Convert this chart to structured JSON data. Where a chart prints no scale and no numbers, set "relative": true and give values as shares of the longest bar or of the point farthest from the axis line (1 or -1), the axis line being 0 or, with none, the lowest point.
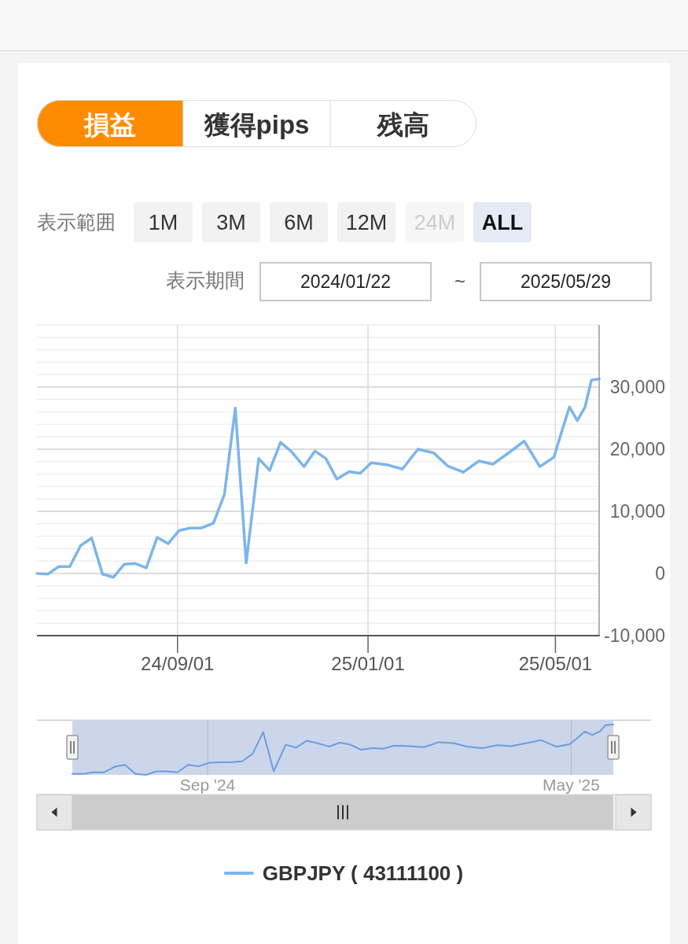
{
  "chart_data": [
    {
      "type": "line",
      "x": [
        "2024-06-03",
        "2024-06-10",
        "2024-06-17",
        "2024-06-24",
        "2024-07-01",
        "2024-07-08",
        "2024-07-15",
        "2024-07-22",
        "2024-07-29",
        "2024-08-05",
        "2024-08-12",
        "2024-08-19",
        "2024-08-26",
        "2024-09-02",
        "2024-09-09",
        "2024-09-16",
        "2024-09-24",
        "2024-10-01",
        "2024-10-08",
        "2024-10-15",
        "2024-10-23",
        "2024-10-30",
        "2024-11-06",
        "2024-11-13",
        "2024-11-21",
        "2024-11-28",
        "2024-12-05",
        "2024-12-12",
        "2024-12-20",
        "2024-12-27",
        "2025-01-03",
        "2025-01-13",
        "2025-01-23",
        "2025-02-02",
        "2025-02-12",
        "2025-02-21",
        "2025-03-03",
        "2025-03-13",
        "2025-03-22",
        "2025-04-01",
        "2025-04-11",
        "2025-04-21",
        "2025-04-30",
        "2025-05-05",
        "2025-05-10",
        "2025-05-15",
        "2025-05-20",
        "2025-05-24",
        "2025-05-29"
      ],
      "series": [
        {
          "name": "GBPJPY ( 43111100 )",
          "color": "#7cb5ec",
          "values": [
            0,
            -100,
            1100,
            1100,
            4500,
            5700,
            -100,
            -600,
            1500,
            1600,
            900,
            5800,
            4800,
            6900,
            7300,
            7300,
            8100,
            12700,
            26600,
            1700,
            18500,
            16600,
            21100,
            19600,
            17200,
            19700,
            18500,
            15200,
            16400,
            16100,
            17800,
            17500,
            16800,
            20000,
            19400,
            17300,
            16300,
            18100,
            17600,
            19400,
            21300,
            17200,
            18700,
            22800,
            26800,
            24600,
            26800,
            31100,
            31300
          ]
        }
      ],
      "xlim": [
        "2024-06-03",
        "2025-05-29"
      ],
      "xticks": [
        {
          "value": "2024-09-01",
          "label": "24/09/01"
        },
        {
          "value": "2025-01-01",
          "label": "25/01/01"
        },
        {
          "value": "2025-05-01",
          "label": "25/05/01"
        }
      ],
      "ylim": [
        -10000,
        40000
      ],
      "yticks": [
        {
          "value": -10000,
          "label": "-10,000"
        },
        {
          "value": -8000,
          "label": null
        },
        {
          "value": -6000,
          "label": null
        },
        {
          "value": -4000,
          "label": null
        },
        {
          "value": -2000,
          "label": null
        },
        0,
        {
          "value": 2000,
          "label": null
        },
        {
          "value": 4000,
          "label": null
        },
        {
          "value": 6000,
          "label": null
        },
        {
          "value": 8000,
          "label": null
        },
        {
          "value": 10000,
          "label": "10,000"
        },
        {
          "value": 12000,
          "label": null
        },
        {
          "value": 14000,
          "label": null
        },
        {
          "value": 16000,
          "label": null
        },
        {
          "value": 18000,
          "label": null
        },
        {
          "value": 20000,
          "label": "20,000"
        },
        {
          "value": 22000,
          "label": null
        },
        {
          "value": 24000,
          "label": null
        },
        {
          "value": 26000,
          "label": null
        },
        {
          "value": 28000,
          "label": null
        },
        {
          "value": 30000,
          "label": "30,000"
        },
        {
          "value": 32000,
          "label": null
        },
        {
          "value": 34000,
          "label": null
        },
        {
          "value": 36000,
          "label": null
        },
        {
          "value": 38000,
          "label": null
        },
        {
          "value": 40000,
          "label": null
        }
      ],
      "grid": true,
      "legend": "bottom",
      "annotations": [
        "損益",
        "獲得pips",
        "残高",
        "表示範囲",
        "1M",
        "3M",
        "6M",
        "12M",
        "24M",
        "ALL",
        "表示期間",
        "2024/01/22",
        "~",
        "2025/05/29"
      ]
    },
    {
      "type": "line",
      "relative": true,
      "x": [
        "2024-06-03",
        "2024-06-10",
        "2024-06-17",
        "2024-06-24",
        "2024-07-01",
        "2024-07-08",
        "2024-07-15",
        "2024-07-22",
        "2024-07-29",
        "2024-08-05",
        "2024-08-12",
        "2024-08-19",
        "2024-08-26",
        "2024-09-02",
        "2024-09-09",
        "2024-09-16",
        "2024-09-24",
        "2024-10-01",
        "2024-10-08",
        "2024-10-15",
        "2024-10-23",
        "2024-10-30",
        "2024-11-06",
        "2024-11-13",
        "2024-11-21",
        "2024-11-28",
        "2024-12-05",
        "2024-12-12",
        "2024-12-20",
        "2024-12-27",
        "2025-01-03",
        "2025-01-13",
        "2025-01-23",
        "2025-02-02",
        "2025-02-12",
        "2025-02-21",
        "2025-03-03",
        "2025-03-13",
        "2025-03-22",
        "2025-04-01",
        "2025-04-11",
        "2025-04-21",
        "2025-04-30",
        "2025-05-05",
        "2025-05-10",
        "2025-05-15",
        "2025-05-20",
        "2025-05-24",
        "2025-05-29"
      ],
      "series": [
        {
          "color": "#6e9be0",
          "values": [
            0.02,
            0.02,
            0.05,
            0.05,
            0.16,
            0.2,
            0.02,
            0,
            0.07,
            0.07,
            0.05,
            0.2,
            0.17,
            0.24,
            0.25,
            0.25,
            0.27,
            0.42,
            0.85,
            0.07,
            0.6,
            0.54,
            0.68,
            0.63,
            0.56,
            0.64,
            0.6,
            0.5,
            0.53,
            0.52,
            0.58,
            0.57,
            0.55,
            0.65,
            0.63,
            0.56,
            0.53,
            0.59,
            0.57,
            0.63,
            0.69,
            0.56,
            0.61,
            0.73,
            0.86,
            0.79,
            0.86,
            0.99,
            1
          ]
        }
      ],
      "xlim": [
        "2024-06-03",
        "2025-05-29"
      ],
      "xticks": [
        {
          "value": "2024-09-01",
          "label": "Sep '24"
        },
        {
          "value": "2025-05-01",
          "label": "May '25"
        }
      ],
      "grid": "x",
      "tick_labels": "x",
      "bands": [
        {
          "axis": "x",
          "from": "2024-06-03",
          "to": "2025-05-29",
          "color": "#ccd6eb"
        }
      ]
    }
  ]
}
